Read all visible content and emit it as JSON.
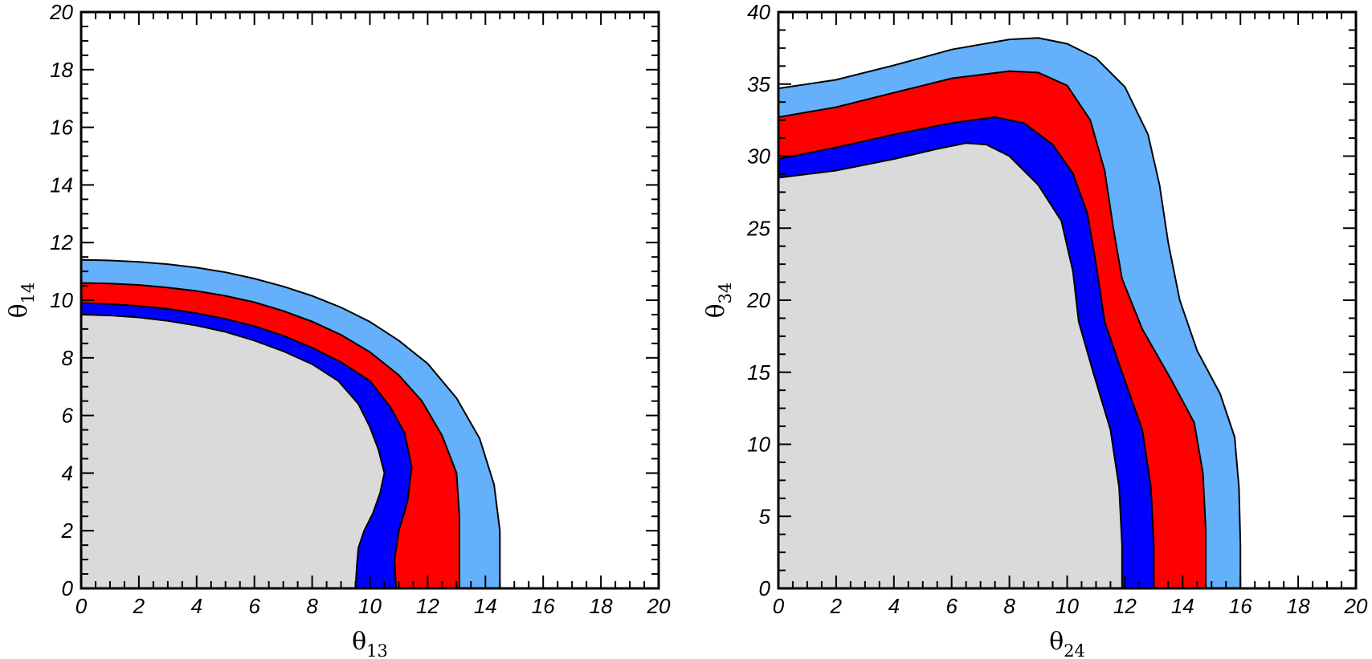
{
  "chart_data": [
    {
      "type": "area",
      "xlabel": "θ",
      "xlabel_sub": "13",
      "ylabel": "θ",
      "ylabel_sub": "14",
      "xlim": [
        0,
        20
      ],
      "ylim": [
        0,
        20
      ],
      "xticks": [
        0,
        2,
        4,
        6,
        8,
        10,
        12,
        14,
        16,
        18,
        20
      ],
      "yticks": [
        0,
        2,
        4,
        6,
        8,
        10,
        12,
        14,
        16,
        18,
        20
      ],
      "xtick_labels": [
        "0",
        "2",
        "4",
        "6",
        "8",
        "10",
        "12",
        "14",
        "16",
        "18",
        "20"
      ],
      "ytick_labels": [
        "0",
        "2",
        "4",
        "6",
        "8",
        "10",
        "12",
        "14",
        "16",
        "18",
        "20"
      ],
      "background_region_color": "#dadada",
      "contours": [
        {
          "color": "#64b0fb",
          "points": [
            [
              0,
              11.4
            ],
            [
              1,
              11.38
            ],
            [
              2,
              11.33
            ],
            [
              3,
              11.25
            ],
            [
              4,
              11.13
            ],
            [
              5,
              10.97
            ],
            [
              6,
              10.75
            ],
            [
              7,
              10.48
            ],
            [
              8,
              10.15
            ],
            [
              9,
              9.75
            ],
            [
              10,
              9.25
            ],
            [
              11,
              8.6
            ],
            [
              12,
              7.8
            ],
            [
              13,
              6.6
            ],
            [
              13.8,
              5.2
            ],
            [
              14.3,
              3.6
            ],
            [
              14.5,
              2.0
            ],
            [
              14.5,
              0.6
            ],
            [
              14.5,
              0
            ]
          ]
        },
        {
          "color": "#ff0000",
          "points": [
            [
              0,
              10.6
            ],
            [
              1,
              10.58
            ],
            [
              2,
              10.53
            ],
            [
              3,
              10.44
            ],
            [
              4,
              10.32
            ],
            [
              5,
              10.15
            ],
            [
              6,
              9.93
            ],
            [
              7,
              9.63
            ],
            [
              8,
              9.26
            ],
            [
              9,
              8.8
            ],
            [
              10,
              8.2
            ],
            [
              11,
              7.4
            ],
            [
              11.8,
              6.5
            ],
            [
              12.5,
              5.3
            ],
            [
              13.0,
              4.0
            ],
            [
              13.1,
              2.5
            ],
            [
              13.1,
              1.0
            ],
            [
              13.1,
              0
            ]
          ]
        },
        {
          "color": "#0000ff",
          "points": [
            [
              0,
              9.9
            ],
            [
              1,
              9.87
            ],
            [
              2,
              9.8
            ],
            [
              3,
              9.7
            ],
            [
              4,
              9.55
            ],
            [
              5,
              9.35
            ],
            [
              6,
              9.1
            ],
            [
              7,
              8.77
            ],
            [
              8,
              8.35
            ],
            [
              9,
              7.85
            ],
            [
              10,
              7.2
            ],
            [
              10.7,
              6.3
            ],
            [
              11.2,
              5.4
            ],
            [
              11.45,
              4.2
            ],
            [
              11.3,
              3.0
            ],
            [
              11.0,
              2.0
            ],
            [
              10.85,
              1.0
            ],
            [
              10.9,
              0
            ]
          ]
        },
        {
          "color": "#dadada",
          "points": [
            [
              0,
              9.5
            ],
            [
              1,
              9.47
            ],
            [
              2,
              9.4
            ],
            [
              3,
              9.28
            ],
            [
              4,
              9.12
            ],
            [
              5,
              8.9
            ],
            [
              6,
              8.6
            ],
            [
              7,
              8.23
            ],
            [
              8,
              7.78
            ],
            [
              8.9,
              7.2
            ],
            [
              9.6,
              6.4
            ],
            [
              10.0,
              5.6
            ],
            [
              10.3,
              4.8
            ],
            [
              10.5,
              4.0
            ],
            [
              10.35,
              3.3
            ],
            [
              10.1,
              2.6
            ],
            [
              9.8,
              2.0
            ],
            [
              9.6,
              1.4
            ],
            [
              9.55,
              0.8
            ],
            [
              9.5,
              0
            ]
          ]
        }
      ]
    },
    {
      "type": "area",
      "xlabel": "θ",
      "xlabel_sub": "24",
      "ylabel": "θ",
      "ylabel_sub": "34",
      "xlim": [
        0,
        20
      ],
      "ylim": [
        0,
        40
      ],
      "xticks": [
        0,
        2,
        4,
        6,
        8,
        10,
        12,
        14,
        16,
        18,
        20
      ],
      "yticks": [
        0,
        5,
        10,
        15,
        20,
        25,
        30,
        35,
        40
      ],
      "xtick_labels": [
        "0",
        "2",
        "4",
        "6",
        "8",
        "10",
        "12",
        "14",
        "16",
        "18",
        "20"
      ],
      "ytick_labels": [
        "0",
        "5",
        "10",
        "15",
        "20",
        "25",
        "30",
        "35",
        "40"
      ],
      "background_region_color": "#dadada",
      "contours": [
        {
          "color": "#64b0fb",
          "points": [
            [
              0,
              34.7
            ],
            [
              2,
              35.3
            ],
            [
              4,
              36.3
            ],
            [
              6,
              37.4
            ],
            [
              8,
              38.1
            ],
            [
              9,
              38.2
            ],
            [
              10,
              37.8
            ],
            [
              11,
              36.8
            ],
            [
              12,
              34.8
            ],
            [
              12.8,
              31.5
            ],
            [
              13.2,
              28.0
            ],
            [
              13.5,
              24.0
            ],
            [
              13.9,
              20.0
            ],
            [
              14.5,
              16.5
            ],
            [
              15.3,
              13.5
            ],
            [
              15.8,
              10.5
            ],
            [
              15.95,
              7.0
            ],
            [
              16.0,
              3.0
            ],
            [
              16.0,
              0
            ]
          ]
        },
        {
          "color": "#ff0000",
          "points": [
            [
              0,
              32.7
            ],
            [
              2,
              33.4
            ],
            [
              4,
              34.4
            ],
            [
              6,
              35.4
            ],
            [
              8,
              35.9
            ],
            [
              9,
              35.8
            ],
            [
              10,
              34.9
            ],
            [
              10.8,
              32.5
            ],
            [
              11.3,
              29.0
            ],
            [
              11.6,
              25.0
            ],
            [
              11.9,
              21.5
            ],
            [
              12.6,
              18.0
            ],
            [
              13.6,
              14.5
            ],
            [
              14.4,
              11.5
            ],
            [
              14.7,
              8.0
            ],
            [
              14.8,
              4.0
            ],
            [
              14.8,
              0
            ]
          ]
        },
        {
          "color": "#0000ff",
          "points": [
            [
              0,
              29.8
            ],
            [
              2,
              30.6
            ],
            [
              4,
              31.5
            ],
            [
              6,
              32.3
            ],
            [
              7.5,
              32.7
            ],
            [
              8.5,
              32.3
            ],
            [
              9.5,
              30.8
            ],
            [
              10.2,
              28.8
            ],
            [
              10.7,
              26.0
            ],
            [
              11.0,
              22.5
            ],
            [
              11.3,
              18.5
            ],
            [
              11.9,
              15.0
            ],
            [
              12.6,
              11.0
            ],
            [
              12.9,
              7.0
            ],
            [
              13.0,
              3.0
            ],
            [
              13.0,
              0
            ]
          ]
        },
        {
          "color": "#dadada",
          "points": [
            [
              0,
              28.5
            ],
            [
              2,
              29.0
            ],
            [
              4,
              29.8
            ],
            [
              5.5,
              30.5
            ],
            [
              6.5,
              30.9
            ],
            [
              7.2,
              30.8
            ],
            [
              8,
              30.0
            ],
            [
              9,
              28.0
            ],
            [
              9.8,
              25.5
            ],
            [
              10.2,
              22.0
            ],
            [
              10.4,
              18.5
            ],
            [
              10.9,
              15.0
            ],
            [
              11.5,
              11.0
            ],
            [
              11.8,
              7.0
            ],
            [
              11.9,
              3.0
            ],
            [
              11.9,
              0
            ]
          ]
        }
      ]
    }
  ]
}
